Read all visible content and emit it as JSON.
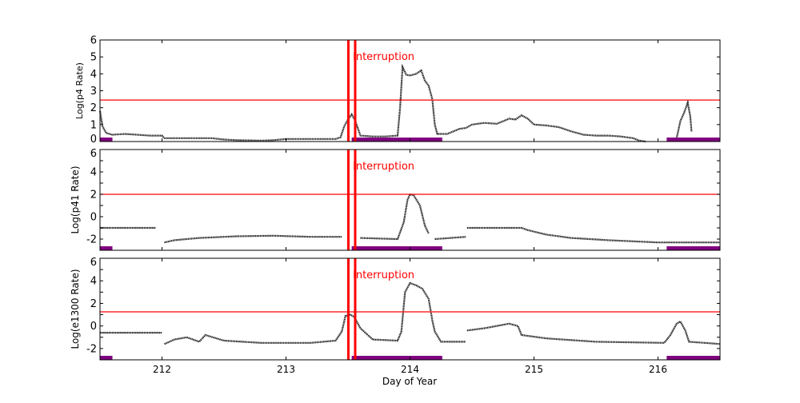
{
  "chart_data": {
    "type": "scatter",
    "xlabel": "Day of Year",
    "xlim": [
      211.5,
      216.5
    ],
    "x_ticks": [
      212,
      213,
      214,
      215,
      216
    ],
    "colors": {
      "data": "#000000",
      "threshold": "#ff0000",
      "interruption": "#ff0000",
      "bar": "#800080"
    },
    "interruption_label": "Interruption",
    "interruption_days": [
      213.503,
      213.558
    ],
    "bars": [
      [
        211.5,
        211.6
      ],
      [
        213.53,
        214.26
      ],
      [
        216.07,
        216.5
      ]
    ],
    "panels": [
      {
        "ylabel": "Log(p4 Rate)",
        "ylim": [
          0,
          6
        ],
        "y_ticks": [
          0,
          1,
          2,
          3,
          4,
          5,
          6
        ],
        "threshold": 2.45,
        "points": [
          [
            211.5,
            1.8
          ],
          [
            211.52,
            0.9
          ],
          [
            211.55,
            0.5
          ],
          [
            211.6,
            0.4
          ],
          [
            211.7,
            0.45
          ],
          [
            211.8,
            0.4
          ],
          [
            211.9,
            0.35
          ],
          [
            212.0,
            0.35
          ],
          [
            212.02,
            0.2
          ],
          [
            212.2,
            0.2
          ],
          [
            212.4,
            0.2
          ],
          [
            212.5,
            0.12
          ],
          [
            212.6,
            0.08
          ],
          [
            212.8,
            0.05
          ],
          [
            212.9,
            0.08
          ],
          [
            213.0,
            0.15
          ],
          [
            213.2,
            0.15
          ],
          [
            213.4,
            0.15
          ],
          [
            213.44,
            0.25
          ],
          [
            213.47,
            0.9
          ],
          [
            213.5,
            1.3
          ],
          [
            213.53,
            1.6
          ],
          [
            213.56,
            1.2
          ],
          [
            213.6,
            0.35
          ],
          [
            213.7,
            0.3
          ],
          [
            213.8,
            0.3
          ],
          [
            213.9,
            0.35
          ],
          [
            213.92,
            2.0
          ],
          [
            213.94,
            4.4
          ],
          [
            213.97,
            3.95
          ],
          [
            214.0,
            3.9
          ],
          [
            214.05,
            4.0
          ],
          [
            214.09,
            4.2
          ],
          [
            214.12,
            3.6
          ],
          [
            214.15,
            3.3
          ],
          [
            214.18,
            2.5
          ],
          [
            214.2,
            1.0
          ],
          [
            214.22,
            0.45
          ],
          [
            214.3,
            0.45
          ],
          [
            214.35,
            0.6
          ],
          [
            214.4,
            0.75
          ],
          [
            214.45,
            0.8
          ],
          [
            214.5,
            1.0
          ],
          [
            214.6,
            1.1
          ],
          [
            214.7,
            1.05
          ],
          [
            214.75,
            1.2
          ],
          [
            214.8,
            1.35
          ],
          [
            214.85,
            1.3
          ],
          [
            214.9,
            1.55
          ],
          [
            214.95,
            1.35
          ],
          [
            215.0,
            1.0
          ],
          [
            215.1,
            0.95
          ],
          [
            215.2,
            0.85
          ],
          [
            215.3,
            0.6
          ],
          [
            215.4,
            0.4
          ],
          [
            215.5,
            0.35
          ],
          [
            215.6,
            0.35
          ],
          [
            215.7,
            0.3
          ],
          [
            215.8,
            0.2
          ],
          [
            215.85,
            0.05
          ],
          [
            215.9,
            0.0
          ],
          null,
          [
            216.15,
            0.2
          ],
          [
            216.18,
            1.2
          ],
          [
            216.21,
            1.7
          ],
          [
            216.24,
            2.3
          ],
          [
            216.26,
            1.5
          ],
          [
            216.27,
            0.6
          ]
        ]
      },
      {
        "ylabel": "Log(p41 Rate)",
        "ylim": [
          -3,
          6
        ],
        "y_ticks": [
          -2,
          0,
          2,
          4,
          6
        ],
        "threshold": 2.0,
        "points": [
          [
            211.5,
            -1.0
          ],
          [
            211.95,
            -1.0
          ],
          null,
          [
            212.02,
            -2.3
          ],
          [
            212.1,
            -2.1
          ],
          [
            212.3,
            -1.9
          ],
          [
            212.6,
            -1.75
          ],
          [
            212.9,
            -1.7
          ],
          [
            213.2,
            -1.8
          ],
          [
            213.45,
            -1.8
          ],
          null,
          [
            213.6,
            -1.9
          ],
          [
            213.9,
            -2.0
          ],
          [
            213.95,
            -0.5
          ],
          [
            213.98,
            1.5
          ],
          [
            214.0,
            2.0
          ],
          [
            214.03,
            1.9
          ],
          [
            214.08,
            1.0
          ],
          [
            214.12,
            -0.8
          ],
          [
            214.15,
            -1.5
          ],
          null,
          [
            214.2,
            -2.0
          ],
          [
            214.45,
            -1.8
          ],
          null,
          [
            214.46,
            -1.0
          ],
          [
            214.9,
            -1.0
          ],
          [
            214.95,
            -1.2
          ],
          [
            215.1,
            -1.6
          ],
          [
            215.3,
            -1.9
          ],
          [
            215.6,
            -2.1
          ],
          [
            216.0,
            -2.3
          ],
          [
            216.5,
            -2.3
          ]
        ]
      },
      {
        "ylabel": "Log(e1300 Rate)",
        "ylim": [
          -3,
          6
        ],
        "y_ticks": [
          -2,
          0,
          2,
          4,
          6
        ],
        "threshold": 1.25,
        "points": [
          [
            211.5,
            -0.6
          ],
          [
            212.0,
            -0.6
          ],
          null,
          [
            212.02,
            -1.6
          ],
          [
            212.1,
            -1.2
          ],
          [
            212.2,
            -1.0
          ],
          [
            212.3,
            -1.4
          ],
          [
            212.35,
            -0.8
          ],
          [
            212.5,
            -1.3
          ],
          [
            212.8,
            -1.5
          ],
          [
            213.2,
            -1.5
          ],
          [
            213.4,
            -1.3
          ],
          [
            213.45,
            -0.5
          ],
          [
            213.48,
            0.9
          ],
          [
            213.52,
            1.0
          ],
          [
            213.55,
            0.8
          ],
          [
            213.6,
            -0.2
          ],
          [
            213.7,
            -1.2
          ],
          [
            213.9,
            -1.3
          ],
          [
            213.93,
            -0.5
          ],
          [
            213.96,
            3.0
          ],
          [
            214.0,
            3.8
          ],
          [
            214.05,
            3.6
          ],
          [
            214.1,
            3.3
          ],
          [
            214.15,
            2.4
          ],
          [
            214.18,
            0.5
          ],
          [
            214.2,
            -0.5
          ],
          [
            214.25,
            -1.4
          ],
          [
            214.45,
            -1.4
          ],
          null,
          [
            214.46,
            -0.4
          ],
          [
            214.6,
            -0.2
          ],
          [
            214.8,
            0.2
          ],
          [
            214.87,
            0.0
          ],
          [
            214.9,
            -0.8
          ],
          [
            215.1,
            -1.1
          ],
          [
            215.5,
            -1.4
          ],
          [
            216.05,
            -1.5
          ],
          [
            216.1,
            -0.8
          ],
          [
            216.15,
            0.2
          ],
          [
            216.18,
            0.4
          ],
          [
            216.22,
            -0.4
          ],
          [
            216.25,
            -1.4
          ],
          [
            216.5,
            -1.6
          ]
        ]
      }
    ]
  }
}
